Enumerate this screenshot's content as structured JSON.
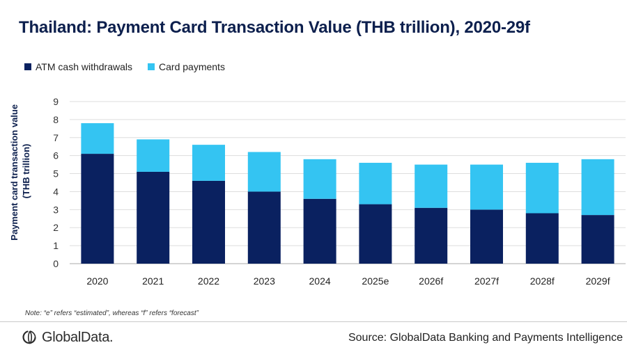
{
  "title": "Thailand: Payment Card Transaction Value (THB trillion), 2020-29f",
  "legend": [
    {
      "label": "ATM cash withdrawals",
      "color": "#0a2160"
    },
    {
      "label": "Card payments",
      "color": "#34c4f2"
    }
  ],
  "chart_data": {
    "type": "bar",
    "stacked": true,
    "title": "Thailand: Payment Card Transaction Value (THB trillion), 2020-29f",
    "categories": [
      "2020",
      "2021",
      "2022",
      "2023",
      "2024",
      "2025e",
      "2026f",
      "2027f",
      "2028f",
      "2029f"
    ],
    "series": [
      {
        "name": "ATM cash withdrawals",
        "color": "#0a2160",
        "values": [
          6.1,
          5.1,
          4.6,
          4.0,
          3.6,
          3.3,
          3.1,
          3.0,
          2.8,
          2.7
        ]
      },
      {
        "name": "Card payments",
        "color": "#34c4f2",
        "values": [
          1.7,
          1.8,
          2.0,
          2.2,
          2.2,
          2.3,
          2.4,
          2.5,
          2.8,
          3.1
        ]
      }
    ],
    "xlabel": "",
    "ylabel": "Payment card transaction value (THB trillion)",
    "ylim": [
      0,
      9
    ],
    "yticks": [
      0,
      1,
      2,
      3,
      4,
      5,
      6,
      7,
      8,
      9
    ],
    "grid": true,
    "legend_position": "top-left"
  },
  "note": "Note: “e” refers “estimated”, whereas “f” refers “forecast”",
  "brand": {
    "name": "GlobalData."
  },
  "source": "Source: GlobalData Banking and Payments Intelligence"
}
